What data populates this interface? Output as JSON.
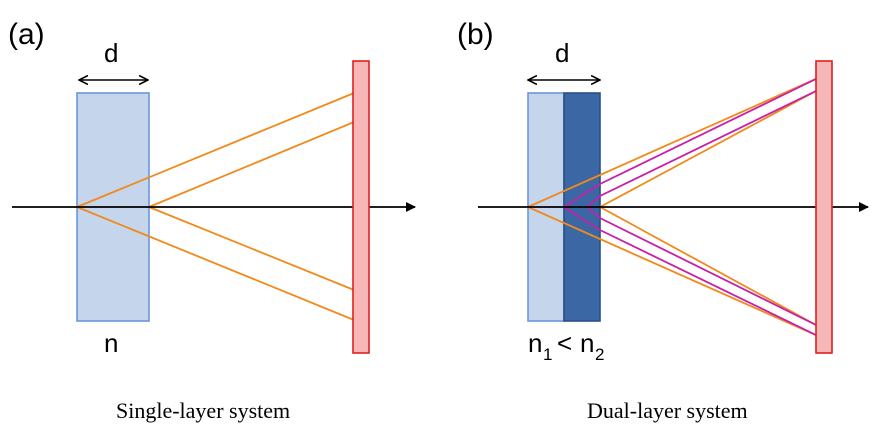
{
  "panels": [
    {
      "label": "(a)",
      "dimension": "d",
      "index_label": "n",
      "caption": "Single-layer system"
    },
    {
      "label": "(b)",
      "dimension": "d",
      "index_main": "n",
      "index_sub1": "1",
      "index_sym": "<",
      "index_sub2": "2",
      "caption": "Dual-layer system"
    }
  ],
  "colors": {
    "layer_light": "#c4d5ec",
    "layer_light_border": "#6b97d8",
    "layer_dark": "#3b67a5",
    "layer_dark_border": "#2a4f86",
    "screen_fill": "#f7b7b7",
    "screen_border": "#e02020",
    "ray_orange": "#f08a1c",
    "ray_magenta": "#c81fa8",
    "axis": "#000000"
  }
}
